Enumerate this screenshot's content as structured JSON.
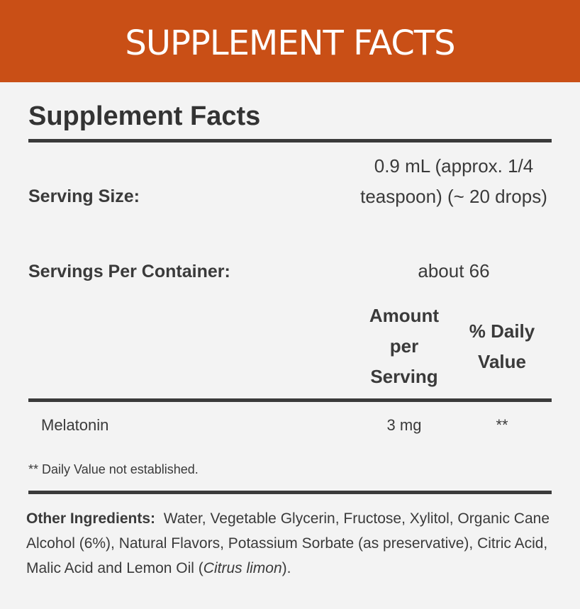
{
  "banner": {
    "title": "SUPPLEMENT FACTS",
    "color": "#c94f16"
  },
  "panel": {
    "title": "Supplement Facts",
    "serving_size_label": "Serving Size:",
    "serving_size_value": "0.9 mL (approx. 1/4 teaspoon) (~ 20 drops)",
    "servings_per_container_label": "Servings Per Container:",
    "servings_per_container_value": "about 66",
    "columns": {
      "amount": "Amount per Serving",
      "daily_value": "% Daily Value"
    },
    "rows": [
      {
        "name": "Melatonin",
        "amount": "3 mg",
        "daily_value": "**"
      }
    ],
    "footnote": "** Daily Value not established.",
    "other_ingredients_label": "Other Ingredients:",
    "other_ingredients_text": "Water, Vegetable Glycerin, Fructose, Xylitol, Organic Cane Alcohol (6%), Natural Flavors, Potassium Sorbate (as preservative), Citric Acid, Malic Acid and Lemon Oil (",
    "other_ingredients_italic": "Citrus limon",
    "other_ingredients_end": ")."
  }
}
